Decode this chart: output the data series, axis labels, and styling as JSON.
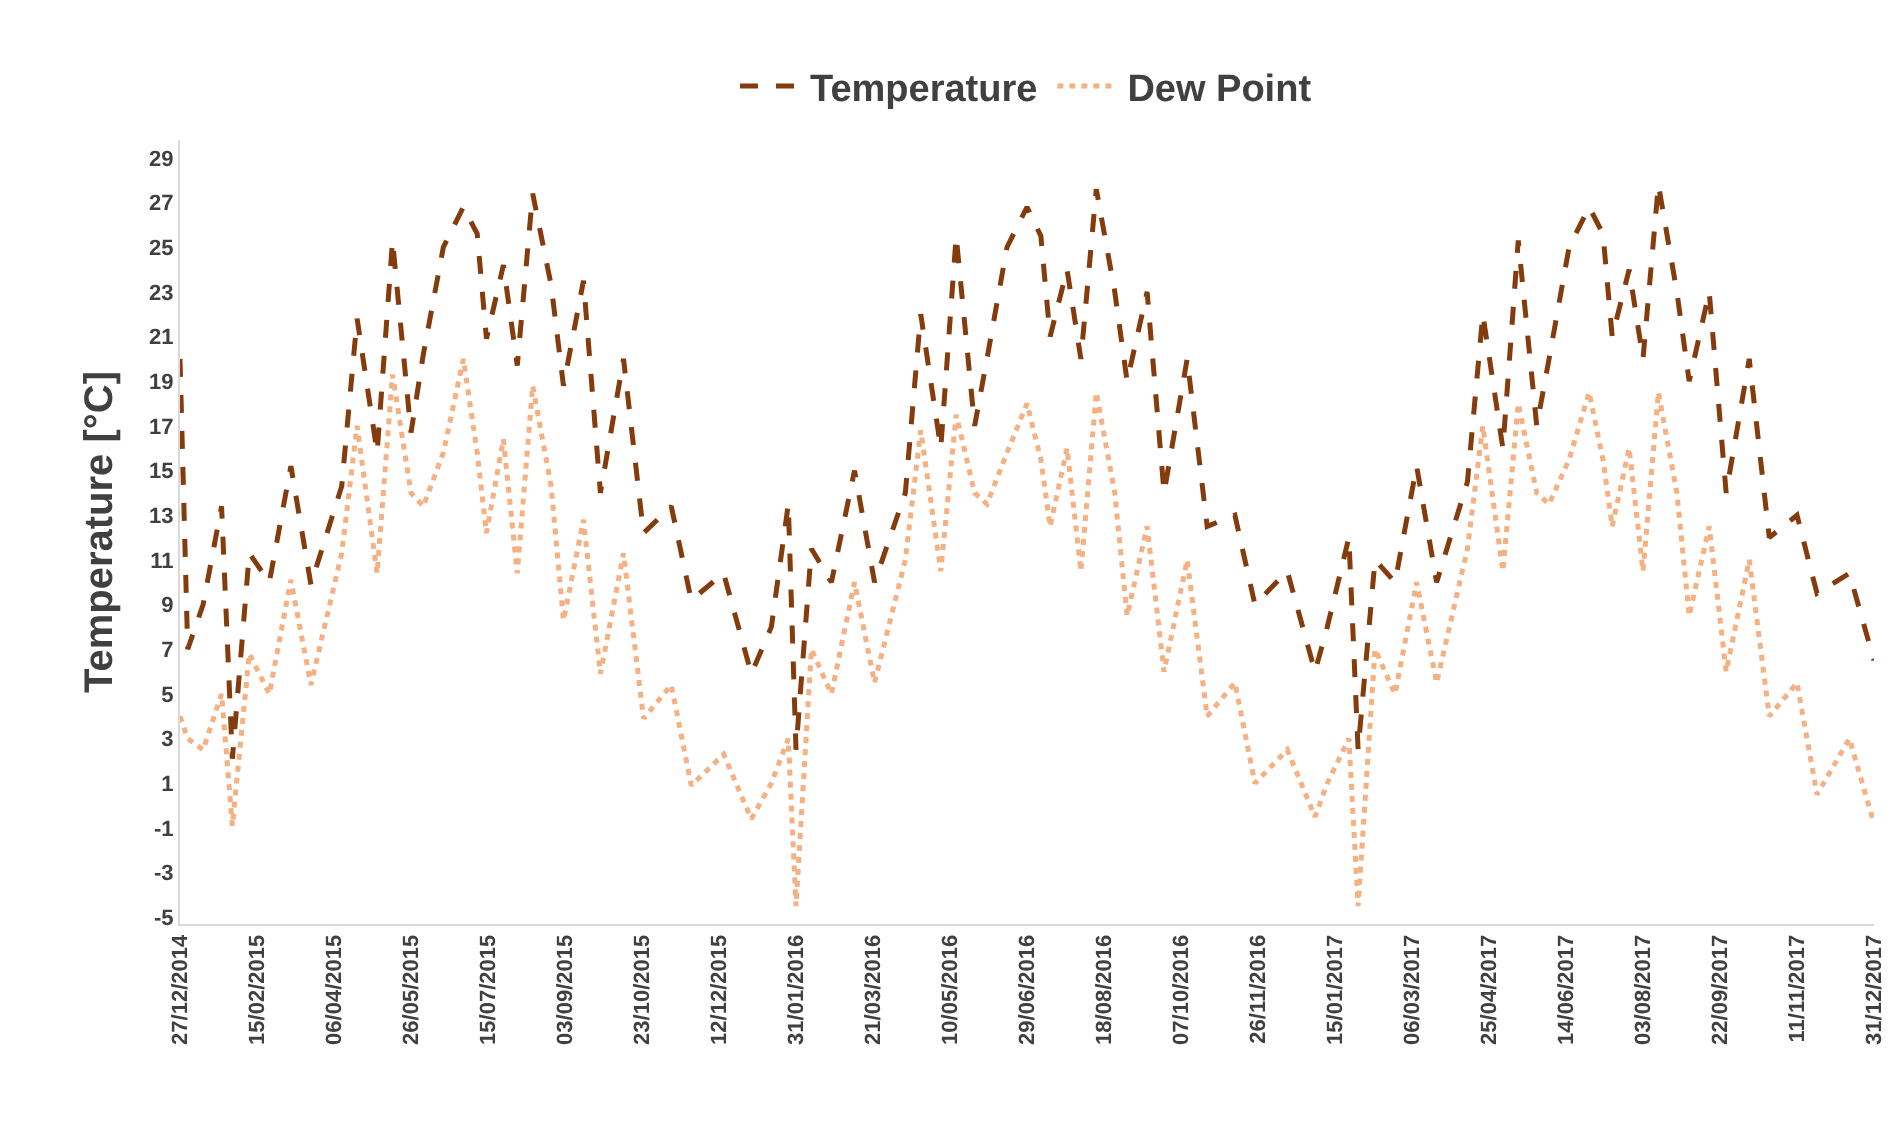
{
  "chart_data": {
    "type": "line",
    "ylabel": "Temperature [°C]",
    "legend": "top",
    "grid": false,
    "xlim": [
      "2014-12-27",
      "2017-12-31"
    ],
    "xticks": [
      {
        "value": "2014-12-27",
        "label": "27/12/2014"
      },
      {
        "value": "2015-02-15",
        "label": "15/02/2015"
      },
      {
        "value": "2015-04-06",
        "label": "06/04/2015"
      },
      {
        "value": "2015-05-26",
        "label": "26/05/2015"
      },
      {
        "value": "2015-07-15",
        "label": "15/07/2015"
      },
      {
        "value": "2015-09-03",
        "label": "03/09/2015"
      },
      {
        "value": "2015-10-23",
        "label": "23/10/2015"
      },
      {
        "value": "2015-12-12",
        "label": "12/12/2015"
      },
      {
        "value": "2016-01-31",
        "label": "31/01/2016"
      },
      {
        "value": "2016-03-21",
        "label": "21/03/2016"
      },
      {
        "value": "2016-05-10",
        "label": "10/05/2016"
      },
      {
        "value": "2016-06-29",
        "label": "29/06/2016"
      },
      {
        "value": "2016-08-18",
        "label": "18/08/2016"
      },
      {
        "value": "2016-10-07",
        "label": "07/10/2016"
      },
      {
        "value": "2016-11-26",
        "label": "26/11/2016"
      },
      {
        "value": "2017-01-15",
        "label": "15/01/2017"
      },
      {
        "value": "2017-03-06",
        "label": "06/03/2017"
      },
      {
        "value": "2017-04-25",
        "label": "25/04/2017"
      },
      {
        "value": "2017-06-14",
        "label": "14/06/2017"
      },
      {
        "value": "2017-08-03",
        "label": "03/08/2017"
      },
      {
        "value": "2017-09-22",
        "label": "22/09/2017"
      },
      {
        "value": "2017-11-11",
        "label": "11/11/2017"
      },
      {
        "value": "2017-12-31",
        "label": "31/12/2017"
      }
    ],
    "ylim": [
      -5.3,
      29.8
    ],
    "yticks": [
      -5,
      -3,
      -1,
      1,
      3,
      5,
      7,
      9,
      11,
      13,
      15,
      17,
      19,
      21,
      23,
      25,
      27,
      29
    ],
    "x": [
      "2014-12-27",
      "2015-01-01",
      "2015-01-11",
      "2015-01-23",
      "2015-01-30",
      "2015-02-10",
      "2015-02-23",
      "2015-03-09",
      "2015-03-22",
      "2015-04-11",
      "2015-04-21",
      "2015-05-04",
      "2015-05-14",
      "2015-05-26",
      "2015-06-03",
      "2015-06-16",
      "2015-06-29",
      "2015-07-08",
      "2015-07-14",
      "2015-07-25",
      "2015-08-03",
      "2015-08-13",
      "2015-08-25",
      "2015-09-02",
      "2015-09-15",
      "2015-09-26",
      "2015-10-11",
      "2015-10-24",
      "2015-11-11",
      "2015-11-24",
      "2015-12-15",
      "2016-01-02",
      "2016-01-15",
      "2016-01-26",
      "2016-01-31",
      "2016-02-10",
      "2016-02-23",
      "2016-03-09",
      "2016-03-22",
      "2016-04-11",
      "2016-04-21",
      "2016-05-04",
      "2016-05-14",
      "2016-05-26",
      "2016-06-03",
      "2016-06-16",
      "2016-06-29",
      "2016-07-08",
      "2016-07-14",
      "2016-07-25",
      "2016-08-03",
      "2016-08-13",
      "2016-08-25",
      "2016-09-02",
      "2016-09-15",
      "2016-09-26",
      "2016-10-11",
      "2016-10-24",
      "2016-11-11",
      "2016-11-24",
      "2016-12-15",
      "2017-01-02",
      "2017-01-10",
      "2017-01-24",
      "2017-01-30",
      "2017-02-10",
      "2017-02-23",
      "2017-03-09",
      "2017-03-22",
      "2017-04-11",
      "2017-04-21",
      "2017-05-04",
      "2017-05-14",
      "2017-05-26",
      "2017-06-03",
      "2017-06-16",
      "2017-06-29",
      "2017-07-08",
      "2017-07-14",
      "2017-07-25",
      "2017-08-03",
      "2017-08-13",
      "2017-08-25",
      "2017-09-02",
      "2017-09-15",
      "2017-09-26",
      "2017-10-11",
      "2017-10-24",
      "2017-11-11",
      "2017-11-24",
      "2017-12-15",
      "2017-12-31"
    ],
    "series": [
      {
        "name": "Temperature",
        "color": "#843c0c",
        "line_style": "dashed",
        "values": [
          20,
          7,
          9,
          13.4,
          2.1,
          11.3,
          10,
          15.2,
          9.9,
          14.3,
          21.8,
          15.8,
          25.3,
          16.7,
          20.2,
          25,
          26.8,
          25.6,
          20.9,
          24.2,
          19.7,
          27.4,
          23.3,
          18.8,
          23.5,
          14,
          20,
          12.2,
          13.4,
          9.2,
          10.4,
          5.9,
          8,
          13.5,
          2.5,
          11.5,
          10,
          15,
          10,
          14,
          22,
          16,
          25.5,
          17,
          20,
          25,
          26.8,
          25.5,
          21,
          24,
          20,
          27.6,
          23,
          19,
          23,
          14,
          20,
          12.5,
          13,
          9,
          10.5,
          6,
          8,
          12,
          2.5,
          11,
          10,
          15.2,
          10,
          14.5,
          22,
          16,
          25.3,
          17,
          20,
          25,
          26.8,
          25.6,
          21,
          24,
          20,
          27.8,
          23,
          19,
          23,
          14,
          20,
          12,
          13,
          9.5,
          10.4,
          6.5
        ]
      },
      {
        "name": "Dew Point",
        "color": "#f4b183",
        "line_style": "dotted",
        "values": [
          4,
          3,
          2.5,
          5,
          -0.9,
          6.8,
          5,
          10.1,
          5.4,
          11.3,
          17,
          10.4,
          19.3,
          14,
          13.4,
          15.8,
          20,
          15.8,
          12.2,
          16.4,
          10.4,
          18.8,
          14.3,
          8.3,
          12.8,
          5.9,
          11.3,
          3.9,
          5.4,
          0.9,
          2.3,
          -0.6,
          1,
          3,
          -4.5,
          7,
          5,
          10,
          5.5,
          11,
          16.8,
          10.5,
          17.5,
          14,
          13.5,
          15.8,
          18,
          15.5,
          12.5,
          16,
          10.5,
          18.5,
          14,
          8.5,
          12.5,
          6,
          11,
          4,
          5.5,
          1,
          2.5,
          -0.5,
          1,
          3,
          -4.5,
          7,
          5,
          10,
          5.5,
          11.5,
          17,
          10.5,
          18,
          14,
          13.5,
          15.5,
          18.5,
          15.5,
          12.5,
          16,
          10.5,
          18.5,
          14,
          8.5,
          12.5,
          6,
          11,
          4,
          5.5,
          0.5,
          3,
          -0.8
        ]
      }
    ]
  }
}
